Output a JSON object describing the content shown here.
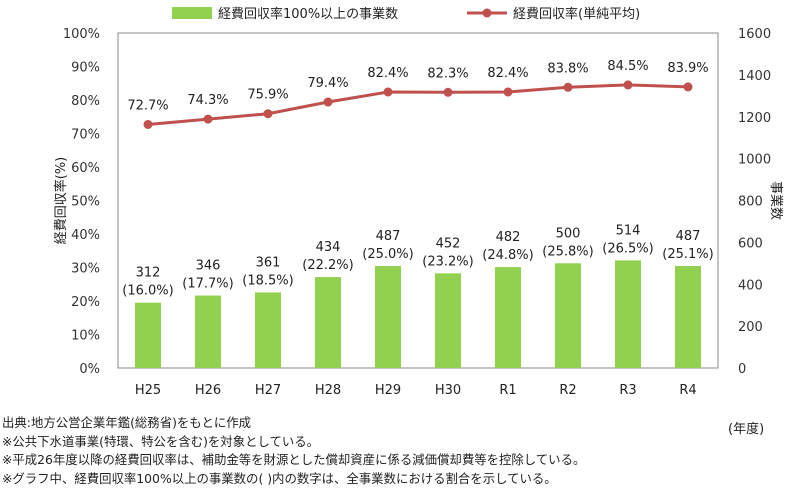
{
  "chart_data": {
    "type": "bar+line",
    "categories": [
      "H25",
      "H26",
      "H27",
      "H28",
      "H29",
      "H30",
      "R1",
      "R2",
      "R3",
      "R4"
    ],
    "series": [
      {
        "name": "経費回収率100%以上の事業数",
        "kind": "bar",
        "axis": "right",
        "color": "#92D050",
        "values": [
          312,
          346,
          361,
          434,
          487,
          452,
          482,
          500,
          514,
          487
        ],
        "share_labels": [
          "(16.0%)",
          "(17.7%)",
          "(18.5%)",
          "(22.2%)",
          "(25.0%)",
          "(23.2%)",
          "(24.8%)",
          "(25.8%)",
          "(26.5%)",
          "(25.1%)"
        ]
      },
      {
        "name": "経費回収率(単純平均)",
        "kind": "line",
        "axis": "left",
        "color": "#C0504D",
        "values": [
          72.7,
          74.3,
          75.9,
          79.4,
          82.4,
          82.3,
          82.4,
          83.8,
          84.5,
          83.9
        ],
        "labels": [
          "72.7%",
          "74.3%",
          "75.9%",
          "79.4%",
          "82.4%",
          "82.3%",
          "82.4%",
          "83.8%",
          "84.5%",
          "83.9%"
        ]
      }
    ],
    "y_left": {
      "label": "経費回収率(%)",
      "ylim": [
        0,
        100
      ],
      "ticks": [
        0,
        10,
        20,
        30,
        40,
        50,
        60,
        70,
        80,
        90,
        100
      ],
      "tick_labels": [
        "0%",
        "10%",
        "20%",
        "30%",
        "40%",
        "50%",
        "60%",
        "70%",
        "80%",
        "90%",
        "100%"
      ]
    },
    "y_right": {
      "label": "事業数",
      "ylim": [
        0,
        1600
      ],
      "ticks": [
        0,
        200,
        400,
        600,
        800,
        1000,
        1200,
        1400,
        1600
      ],
      "tick_labels": [
        "0",
        "200",
        "400",
        "600",
        "800",
        "1000",
        "1200",
        "1400",
        "1600"
      ]
    },
    "x_unit": "(年度)",
    "legend_position": "top",
    "grid": false
  },
  "notes": [
    "出典:地方公営企業年鑑(総務省)をもとに作成",
    "※公共下水道事業(特環、特公を含む)を対象としている。",
    "※平成26年度以降の経費回収率は、補助金等を財源とした償却資産に係る減価償却費等を控除している。",
    "※グラフ中、経費回収率100%以上の事業数の( )内の数字は、全事業数における割合を示している。"
  ]
}
